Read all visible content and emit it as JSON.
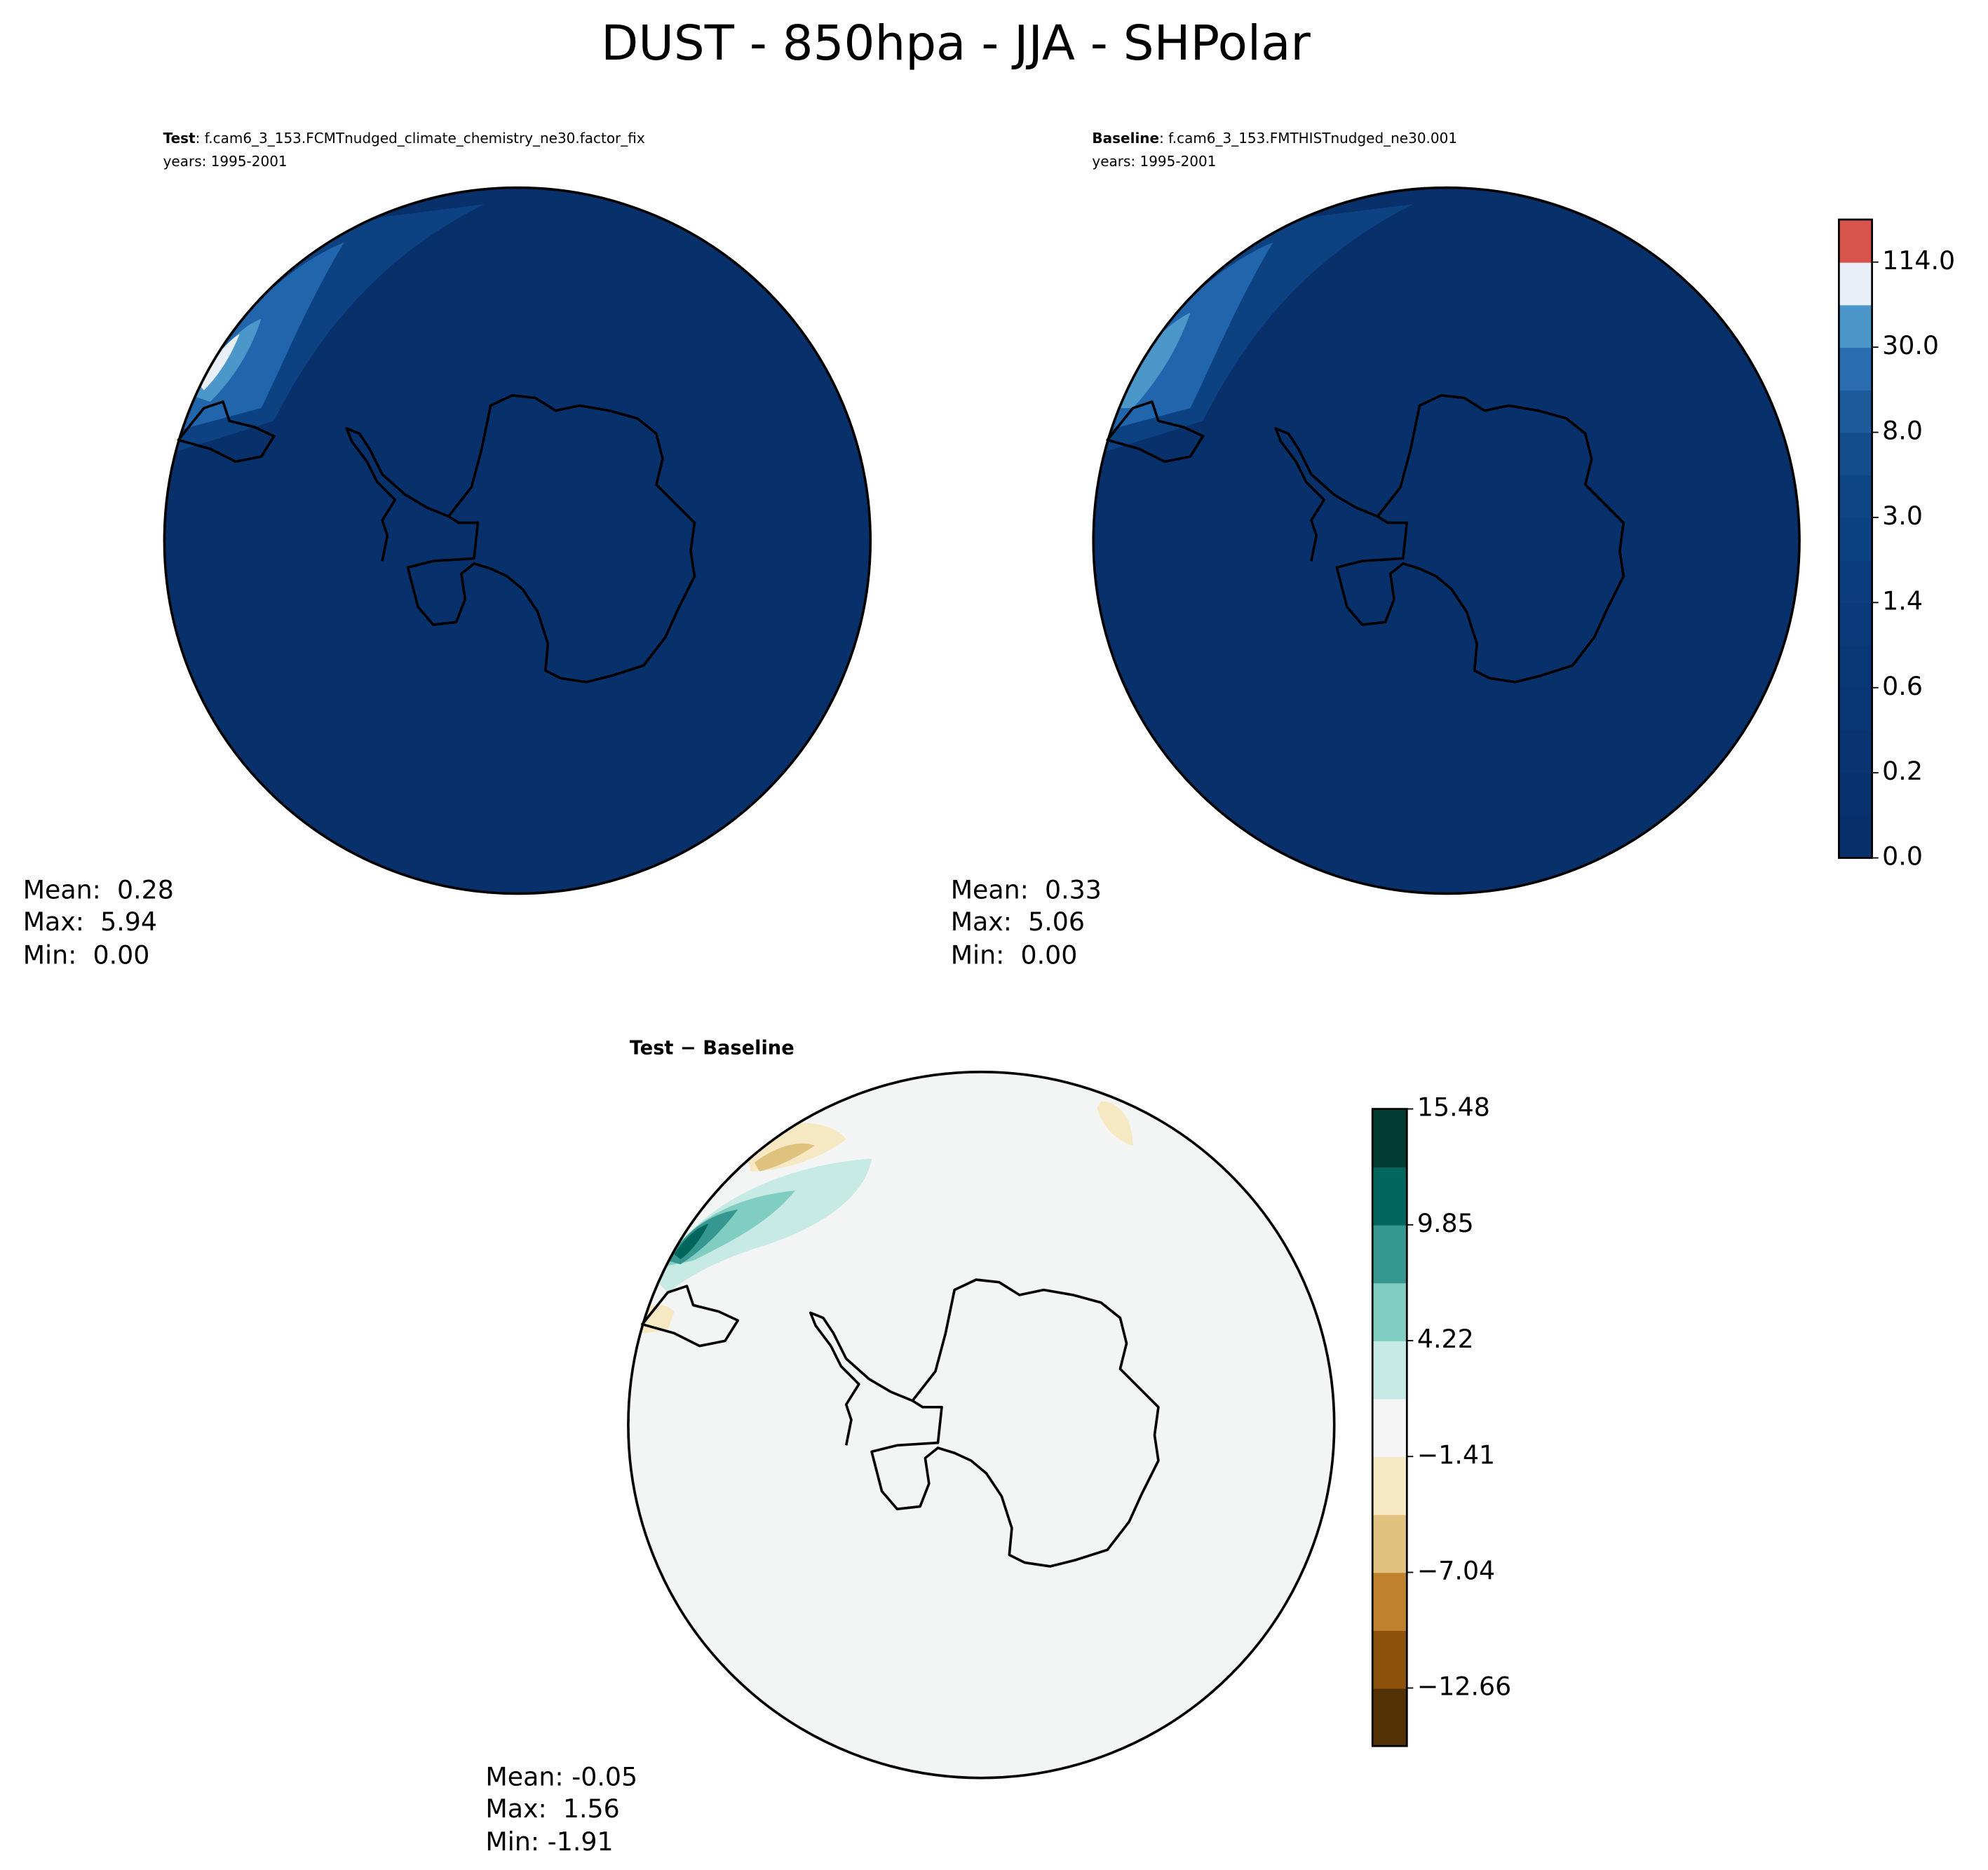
{
  "title": "DUST - 850hpa - JJA - SHPolar",
  "panels": [
    {
      "label": "Test",
      "case": ": f.cam6_3_153.FCMTnudged_climate_chemistry_ne30.factor_fix",
      "years": "years: 1995-2001",
      "stats": [
        "Mean:  0.28",
        "Max:  5.94",
        "Min:  0.00"
      ]
    },
    {
      "label": "Baseline",
      "case": ": f.cam6_3_153.FMTHISTnudged_ne30.001",
      "years": "years: 1995-2001",
      "stats": [
        "Mean:  0.33",
        "Max:  5.06",
        "Min:  0.00"
      ]
    },
    {
      "label": "Test − Baseline",
      "stats": [
        "Mean: -0.05",
        "Max:  1.56",
        "Min: -1.91"
      ]
    }
  ],
  "colorbars": [
    {
      "colors": [
        "#08306b",
        "#08326e",
        "#083471",
        "#093674",
        "#093877",
        "#0a3a7a",
        "#0b3d7e",
        "#0d4282",
        "#104584",
        "#154c8c",
        "#1c5a9c",
        "#2a6db0",
        "#4b97c9",
        "#e8eff6",
        "#d6544a"
      ],
      "ticks": [
        {
          "value": 0,
          "label": "0.0"
        },
        0.2,
        0.6,
        1.4,
        {
          "value": 3,
          "label": "3.0"
        },
        {
          "value": 8,
          "label": "8.0"
        },
        {
          "value": 30,
          "label": "30.0"
        },
        {
          "value": 114,
          "label": "114.0"
        }
      ]
    },
    {
      "colors": [
        "#543005",
        "#8c510a",
        "#bf812d",
        "#dfc27d",
        "#f6e8c3",
        "#f5f5f5",
        "#c7eae5",
        "#80cdc1",
        "#35978f",
        "#01665e",
        "#003c30"
      ],
      "ylim": [
        -15.48,
        15.48
      ],
      "ticks": [
        {
          "value": -12.66,
          "label": "−12.66"
        },
        {
          "value": -7.04,
          "label": "−7.04"
        },
        {
          "value": -1.41,
          "label": "−1.41"
        },
        4.22,
        9.85,
        15.48
      ]
    }
  ]
}
